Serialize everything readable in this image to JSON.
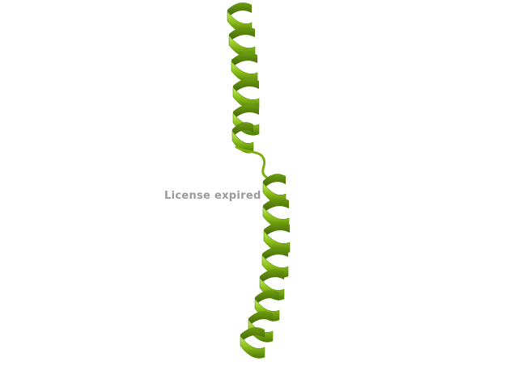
{
  "viewer": {
    "watermark_text": "License expired",
    "helix_color": "#8ec21a",
    "helix_dark": "#4e7a06",
    "helix_light": "#c9ef6a",
    "background": "#ffffff"
  }
}
